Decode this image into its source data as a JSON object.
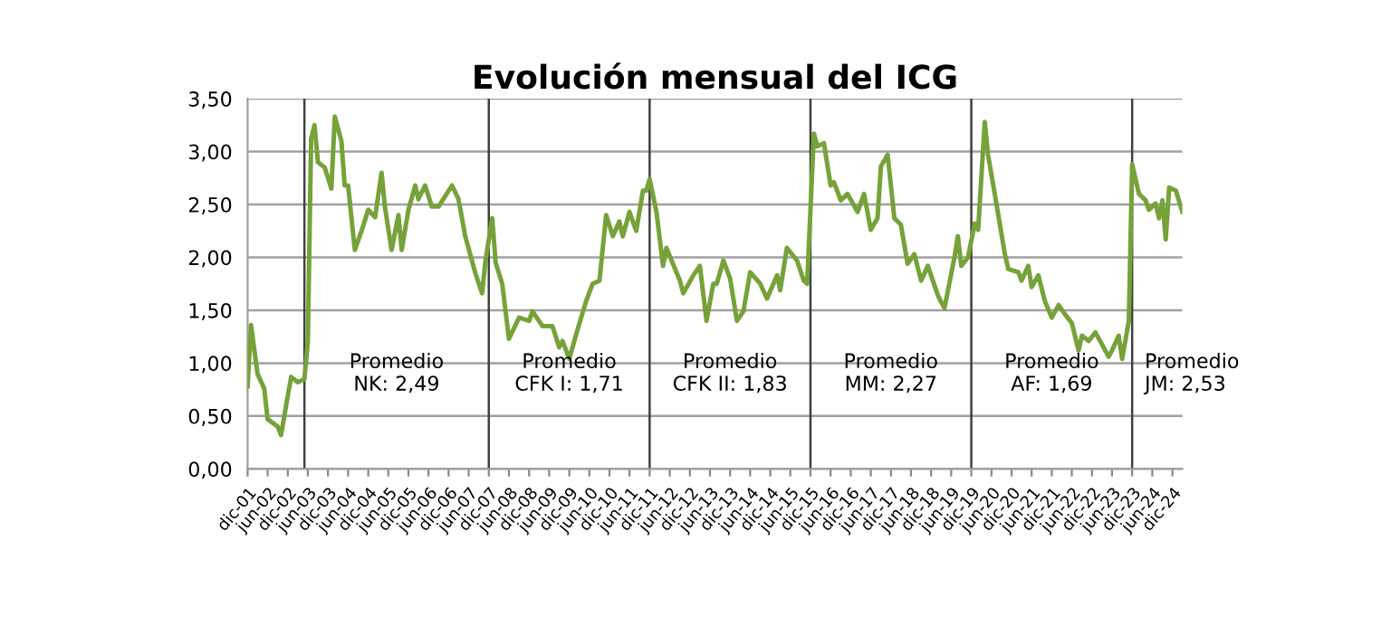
{
  "chart_data": {
    "type": "line",
    "title": "Evolución mensual del ICG",
    "x": [
      "2001-12",
      "2002-01",
      "2002-03",
      "2002-05",
      "2002-06",
      "2002-09",
      "2002-10",
      "2002-12",
      "2003-01",
      "2003-03",
      "2003-05",
      "2003-06",
      "2003-07",
      "2003-08",
      "2003-09",
      "2003-11",
      "2004-01",
      "2004-02",
      "2004-04",
      "2004-05",
      "2004-06",
      "2004-08",
      "2004-10",
      "2004-12",
      "2005-02",
      "2005-04",
      "2005-05",
      "2005-07",
      "2005-09",
      "2005-10",
      "2005-12",
      "2006-02",
      "2006-03",
      "2006-05",
      "2006-07",
      "2006-09",
      "2007-01",
      "2007-03",
      "2007-05",
      "2007-08",
      "2007-10",
      "2007-11",
      "2008-01",
      "2008-02",
      "2008-04",
      "2008-06",
      "2008-09",
      "2008-12",
      "2009-01",
      "2009-04",
      "2009-07",
      "2009-09",
      "2009-10",
      "2009-12",
      "2010-02",
      "2010-05",
      "2010-07",
      "2010-09",
      "2010-11",
      "2011-01",
      "2011-03",
      "2011-04",
      "2011-06",
      "2011-08",
      "2011-10",
      "2011-11",
      "2011-12",
      "2012-02",
      "2012-04",
      "2012-05",
      "2012-09",
      "2012-10",
      "2013-01",
      "2013-03",
      "2013-05",
      "2013-07",
      "2013-08",
      "2013-10",
      "2013-12",
      "2014-02",
      "2014-04",
      "2014-06",
      "2014-09",
      "2014-11",
      "2015-02",
      "2015-03",
      "2015-05",
      "2015-08",
      "2015-10",
      "2015-11",
      "2016-01",
      "2016-02",
      "2016-04",
      "2016-06",
      "2016-07",
      "2016-09",
      "2016-11",
      "2017-02",
      "2017-04",
      "2017-06",
      "2017-08",
      "2017-09",
      "2017-11",
      "2018-01",
      "2018-03",
      "2018-05",
      "2018-07",
      "2018-09",
      "2018-11",
      "2019-02",
      "2019-03",
      "2019-04",
      "2019-07",
      "2019-08",
      "2019-09",
      "2019-11",
      "2020-01",
      "2020-02",
      "2020-04",
      "2020-05",
      "2020-07",
      "2020-10",
      "2020-11",
      "2021-02",
      "2021-03",
      "2021-05",
      "2021-06",
      "2021-08",
      "2021-10",
      "2021-12",
      "2022-02",
      "2022-04",
      "2022-06",
      "2022-08",
      "2022-09",
      "2022-11",
      "2023-01",
      "2023-03",
      "2023-05",
      "2023-06",
      "2023-08",
      "2023-09",
      "2023-11",
      "2023-12",
      "2024-02",
      "2024-04",
      "2024-05",
      "2024-07",
      "2024-08",
      "2024-09",
      "2024-10",
      "2024-11",
      "2025-01",
      "2025-03"
    ],
    "series": [
      {
        "color": "#76a23a",
        "values": [
          0.78,
          1.36,
          0.9,
          0.76,
          0.47,
          0.4,
          0.32,
          0.69,
          0.87,
          0.82,
          0.85,
          1.2,
          3.12,
          3.25,
          2.9,
          2.85,
          2.65,
          3.33,
          3.1,
          2.68,
          2.68,
          2.07,
          2.25,
          2.45,
          2.38,
          2.8,
          2.48,
          2.07,
          2.4,
          2.07,
          2.45,
          2.68,
          2.55,
          2.68,
          2.48,
          2.48,
          2.68,
          2.55,
          2.2,
          1.85,
          1.66,
          1.97,
          2.37,
          1.95,
          1.75,
          1.23,
          1.43,
          1.4,
          1.49,
          1.35,
          1.35,
          1.15,
          1.21,
          1.04,
          1.27,
          1.58,
          1.75,
          1.78,
          2.4,
          2.2,
          2.34,
          2.2,
          2.43,
          2.25,
          2.63,
          2.63,
          2.74,
          2.43,
          1.92,
          2.09,
          1.78,
          1.66,
          1.83,
          1.92,
          1.4,
          1.75,
          1.75,
          1.97,
          1.8,
          1.4,
          1.49,
          1.86,
          1.75,
          1.61,
          1.83,
          1.69,
          2.09,
          1.97,
          1.78,
          1.75,
          3.17,
          3.05,
          3.08,
          2.68,
          2.71,
          2.54,
          2.6,
          2.43,
          2.6,
          2.26,
          2.37,
          2.86,
          2.97,
          2.37,
          2.31,
          1.94,
          2.03,
          1.78,
          1.92,
          1.64,
          1.58,
          1.52,
          2.0,
          2.2,
          1.92,
          2.0,
          2.32,
          2.26,
          3.28,
          2.97,
          2.6,
          2.03,
          1.89,
          1.86,
          1.78,
          1.92,
          1.72,
          1.83,
          1.58,
          1.43,
          1.55,
          1.46,
          1.38,
          1.12,
          1.26,
          1.21,
          1.29,
          1.18,
          1.06,
          1.12,
          1.26,
          1.04,
          1.4,
          2.88,
          2.6,
          2.54,
          2.45,
          2.51,
          2.37,
          2.54,
          2.17,
          2.66,
          2.63,
          2.43
        ]
      }
    ],
    "xlim": [
      "2001-12",
      "2025-03"
    ],
    "xticks": [
      {
        "value": "2001-12",
        "label": "dic-01"
      },
      {
        "value": "2002-06",
        "label": "jun-02"
      },
      {
        "value": "2002-12",
        "label": "dic-02"
      },
      {
        "value": "2003-06",
        "label": "jun-03"
      },
      {
        "value": "2003-12",
        "label": "dic-03"
      },
      {
        "value": "2004-06",
        "label": "jun-04"
      },
      {
        "value": "2004-12",
        "label": "dic-04"
      },
      {
        "value": "2005-06",
        "label": "jun-05"
      },
      {
        "value": "2005-12",
        "label": "dic-05"
      },
      {
        "value": "2006-06",
        "label": "jun-06"
      },
      {
        "value": "2006-12",
        "label": "dic-06"
      },
      {
        "value": "2007-06",
        "label": "jun-07"
      },
      {
        "value": "2007-12",
        "label": "dic-07"
      },
      {
        "value": "2008-06",
        "label": "jun-08"
      },
      {
        "value": "2008-12",
        "label": "dic-08"
      },
      {
        "value": "2009-06",
        "label": "jun-09"
      },
      {
        "value": "2009-12",
        "label": "dic-09"
      },
      {
        "value": "2010-06",
        "label": "jun-10"
      },
      {
        "value": "2010-12",
        "label": "dic-10"
      },
      {
        "value": "2011-06",
        "label": "jun-11"
      },
      {
        "value": "2011-12",
        "label": "dic-11"
      },
      {
        "value": "2012-06",
        "label": "jun-12"
      },
      {
        "value": "2012-12",
        "label": "dic-12"
      },
      {
        "value": "2013-06",
        "label": "jun-13"
      },
      {
        "value": "2013-12",
        "label": "dic-13"
      },
      {
        "value": "2014-06",
        "label": "jun-14"
      },
      {
        "value": "2014-12",
        "label": "dic-14"
      },
      {
        "value": "2015-06",
        "label": "jun-15"
      },
      {
        "value": "2015-12",
        "label": "dic-15"
      },
      {
        "value": "2016-06",
        "label": "jun-16"
      },
      {
        "value": "2016-12",
        "label": "dic-16"
      },
      {
        "value": "2017-06",
        "label": "jun-17"
      },
      {
        "value": "2017-12",
        "label": "dic-17"
      },
      {
        "value": "2018-06",
        "label": "jun-18"
      },
      {
        "value": "2018-12",
        "label": "dic-18"
      },
      {
        "value": "2019-06",
        "label": "jun-19"
      },
      {
        "value": "2019-12",
        "label": "dic-19"
      },
      {
        "value": "2020-06",
        "label": "jun-20"
      },
      {
        "value": "2020-12",
        "label": "dic-20"
      },
      {
        "value": "2021-06",
        "label": "jun-21"
      },
      {
        "value": "2021-12",
        "label": "dic-21"
      },
      {
        "value": "2022-06",
        "label": "jun-22"
      },
      {
        "value": "2022-12",
        "label": "dic-22"
      },
      {
        "value": "2023-06",
        "label": "jun-23"
      },
      {
        "value": "2023-12",
        "label": "dic-23"
      },
      {
        "value": "2024-06",
        "label": "jun-24"
      },
      {
        "value": "2024-12",
        "label": "dic-24"
      }
    ],
    "ylim": [
      0,
      3.5
    ],
    "yticks": [
      {
        "value": 0,
        "label": "0,00"
      },
      {
        "value": 0.5,
        "label": "0,50"
      },
      {
        "value": 1,
        "label": "1,00"
      },
      {
        "value": 1.5,
        "label": "1,50"
      },
      {
        "value": 2,
        "label": "2,00"
      },
      {
        "value": 2.5,
        "label": "2,50"
      },
      {
        "value": 3,
        "label": "3,00"
      },
      {
        "value": 3.5,
        "label": "3,50"
      }
    ],
    "grid": "y",
    "ref_lines": [
      {
        "axis": "x",
        "value": "2003-05",
        "color": "#404040"
      },
      {
        "axis": "x",
        "value": "2007-12",
        "color": "#404040"
      },
      {
        "axis": "x",
        "value": "2011-12",
        "color": "#404040"
      },
      {
        "axis": "x",
        "value": "2015-12",
        "color": "#404040"
      },
      {
        "axis": "x",
        "value": "2019-12",
        "color": "#404040"
      },
      {
        "axis": "x",
        "value": "2023-12",
        "color": "#404040"
      }
    ],
    "annotations": [
      "Promedio\nNK: 2,49",
      "Promedio\nCFK I: 1,71",
      "Promedio\nCFK II: 1,83",
      "Promedio\nMM: 2,27",
      "Promedio\nAF: 1,69",
      "Promedio\nJM: 2,53"
    ],
    "line_style": "solid",
    "marker": "none"
  }
}
